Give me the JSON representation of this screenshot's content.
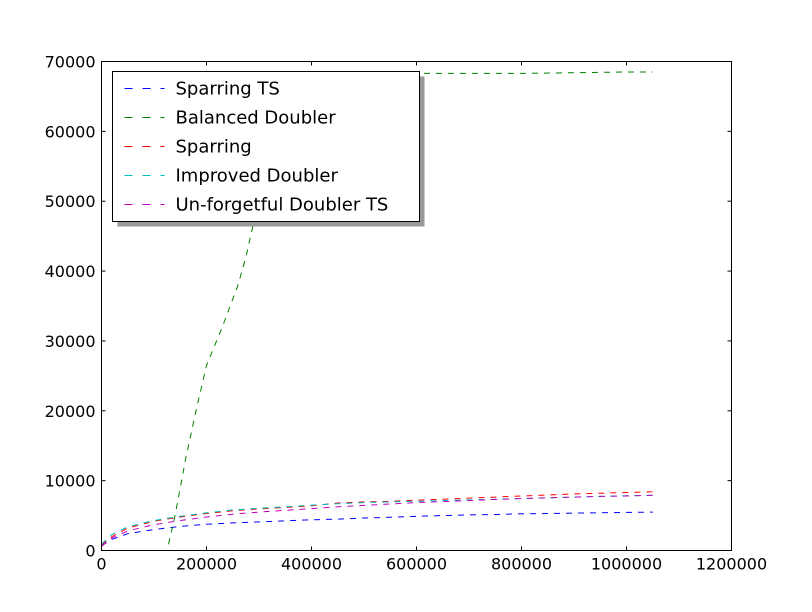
{
  "chart_data": {
    "type": "line",
    "title": "",
    "xlabel": "",
    "ylabel": "",
    "xlim": [
      0,
      1200000
    ],
    "ylim": [
      0,
      70000
    ],
    "xticks": [
      0,
      200000,
      400000,
      600000,
      800000,
      1000000,
      1200000
    ],
    "yticks": [
      0,
      10000,
      20000,
      30000,
      40000,
      50000,
      60000,
      70000
    ],
    "xtick_labels": [
      "0",
      "200000",
      "400000",
      "600000",
      "800000",
      "1000000",
      "1200000"
    ],
    "ytick_labels": [
      "0",
      "10000",
      "20000",
      "30000",
      "40000",
      "50000",
      "60000",
      "70000"
    ],
    "grid": false,
    "legend_position": "upper-left",
    "line_style": "dashed",
    "series": [
      {
        "name": "Sparring TS",
        "color": "#0000ff",
        "x": [
          0,
          20000,
          50000,
          100000,
          150000,
          200000,
          250000,
          300000,
          350000,
          400000,
          450000,
          500000,
          550000,
          600000,
          650000,
          700000,
          750000,
          800000,
          850000,
          900000,
          950000,
          1000000,
          1050000
        ],
        "y": [
          700,
          1600,
          2400,
          3000,
          3450,
          3750,
          3950,
          4100,
          4250,
          4400,
          4500,
          4650,
          4750,
          4900,
          5000,
          5100,
          5150,
          5250,
          5300,
          5350,
          5400,
          5450,
          5500
        ]
      },
      {
        "name": "Balanced Doubler",
        "color": "#008000",
        "x": [
          0,
          50000,
          100000,
          125000,
          140000,
          160000,
          180000,
          200000,
          230000,
          260000,
          275000,
          290000,
          310000,
          330000,
          360000,
          400000,
          450000,
          500000,
          550000,
          600000,
          700000,
          800000,
          900000,
          1000000,
          1050000
        ],
        "y": [
          0,
          0,
          0,
          0,
          5000,
          13000,
          20000,
          26500,
          32000,
          38000,
          42000,
          47000,
          55000,
          62000,
          66500,
          68000,
          68300,
          68300,
          68300,
          68300,
          68300,
          68300,
          68400,
          68500,
          68500
        ]
      },
      {
        "name": "Sparring",
        "color": "#ff0000",
        "x": [
          0,
          20000,
          50000,
          100000,
          150000,
          200000,
          250000,
          300000,
          350000,
          400000,
          450000,
          500000,
          550000,
          600000,
          650000,
          700000,
          750000,
          800000,
          850000,
          900000,
          950000,
          1000000,
          1050000
        ],
        "y": [
          800,
          2000,
          3200,
          4200,
          4800,
          5300,
          5700,
          5950,
          6150,
          6400,
          6800,
          6950,
          7050,
          7200,
          7350,
          7500,
          7650,
          7800,
          7950,
          8100,
          8200,
          8300,
          8400
        ]
      },
      {
        "name": "Improved Doubler",
        "color": "#00bfbf",
        "x": [
          0,
          20000,
          50000,
          100000,
          150000,
          200000,
          250000,
          300000,
          350000,
          400000,
          450000,
          500000,
          550000,
          600000,
          650000,
          700000,
          750000,
          800000,
          850000,
          900000,
          950000,
          1000000,
          1050000
        ],
        "y": [
          900,
          2300,
          3400,
          4300,
          4900,
          5400,
          5800,
          6050,
          6250,
          6500,
          6700,
          6850,
          6950,
          7050,
          7150,
          7250,
          7350,
          7450,
          7550,
          7650,
          7750,
          7850,
          7900
        ]
      },
      {
        "name": "Un-forgetful Doubler TS",
        "color": "#bf00bf",
        "x": [
          0,
          20000,
          50000,
          100000,
          150000,
          200000,
          250000,
          300000,
          350000,
          400000,
          450000,
          500000,
          550000,
          600000,
          650000,
          700000,
          750000,
          800000,
          850000,
          900000,
          950000,
          1000000,
          1050000
        ],
        "y": [
          600,
          1800,
          2800,
          3700,
          4300,
          4800,
          5200,
          5500,
          5750,
          6000,
          6250,
          6450,
          6650,
          6850,
          7000,
          7150,
          7300,
          7450,
          7550,
          7650,
          7750,
          7800,
          7900
        ]
      }
    ]
  }
}
